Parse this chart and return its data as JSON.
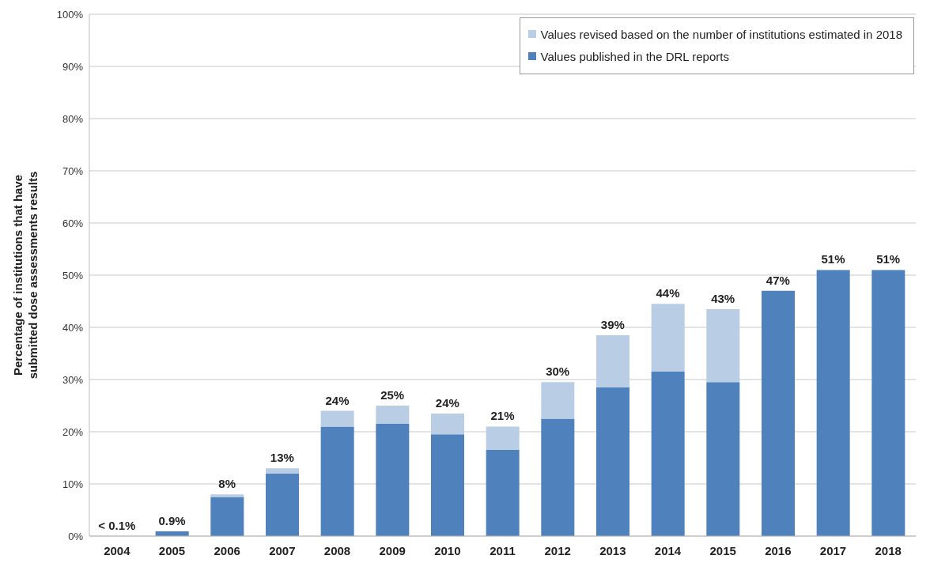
{
  "chart_data": {
    "type": "bar",
    "ylabel": "Percentage of institutions that have submitted dose assessments results",
    "categories": [
      "2004",
      "2005",
      "2006",
      "2007",
      "2008",
      "2009",
      "2010",
      "2011",
      "2012",
      "2013",
      "2014",
      "2015",
      "2016",
      "2017",
      "2018"
    ],
    "series": [
      {
        "name": "Values published in the DRL reports",
        "color": "#4f81bd",
        "values": [
          0,
          0.9,
          7.5,
          12,
          21,
          21.5,
          19.5,
          16.5,
          22.5,
          28.5,
          31.5,
          29.5,
          47,
          51,
          51
        ]
      },
      {
        "name": "Values revised based on the number of institutions estimated in 2018",
        "color": "#b9cde5",
        "values": [
          0,
          0,
          0.5,
          1,
          3,
          3.5,
          4,
          4.5,
          7,
          10,
          13,
          14,
          0,
          0,
          0
        ]
      }
    ],
    "stacked": true,
    "totals": [
      "< 0.1%",
      "0.9%",
      "8%",
      "13%",
      "24%",
      "25%",
      "24%",
      "21%",
      "30%",
      "39%",
      "44%",
      "43%",
      "47%",
      "51%",
      "51%"
    ],
    "ylim": [
      0,
      100
    ],
    "yticks": [
      {
        "value": 0,
        "label": "0%"
      },
      {
        "value": 10,
        "label": "10%"
      },
      {
        "value": 20,
        "label": "20%"
      },
      {
        "value": 30,
        "label": "30%"
      },
      {
        "value": 40,
        "label": "40%"
      },
      {
        "value": 50,
        "label": "50%"
      },
      {
        "value": 60,
        "label": "60%"
      },
      {
        "value": 70,
        "label": "70%"
      },
      {
        "value": 80,
        "label": "80%"
      },
      {
        "value": 90,
        "label": "90%"
      },
      {
        "value": 100,
        "label": "100%"
      }
    ],
    "grid": "y",
    "legend": "top right"
  }
}
